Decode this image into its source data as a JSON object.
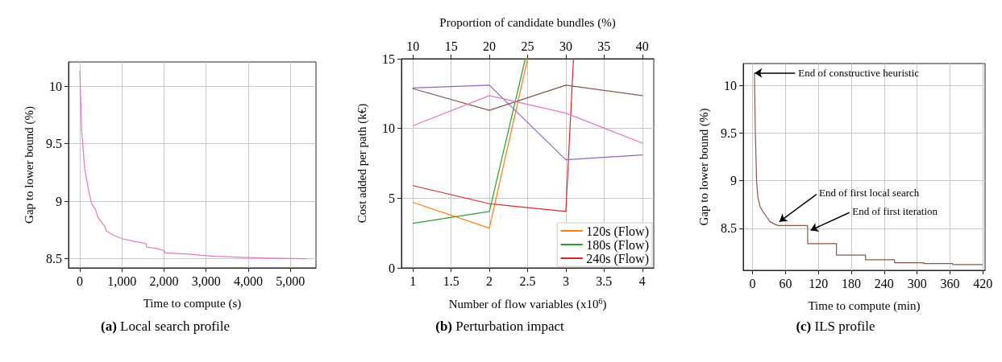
{
  "chart_data": [
    {
      "type": "line",
      "title": "(a) Local search profile",
      "xlabel": "Time to compute (s)",
      "ylabel": "Gap to lower bound (%)",
      "xlim": [
        -270,
        5610
      ],
      "xticks": [
        0,
        {
          "value": 1000,
          "label": "1,000"
        },
        {
          "value": 2000,
          "label": "2,000"
        },
        {
          "value": 3000,
          "label": "3,000"
        },
        {
          "value": 4000,
          "label": "4,000"
        },
        {
          "value": 5000,
          "label": "5,000"
        }
      ],
      "ylim": [
        8.42,
        10.21
      ],
      "yticks": [
        8.5,
        9,
        9.5,
        10
      ],
      "grid": true,
      "series": [
        {
          "color": "#e377c2",
          "x": [
            0,
            40,
            115,
            210,
            275,
            370,
            430,
            590,
            630,
            820,
            1040,
            1300,
            1580,
            1585,
            1810,
            2000,
            2030,
            2570,
            3210,
            3980,
            4490,
            5380
          ],
          "values": [
            10.13,
            9.63,
            9.28,
            9.09,
            8.98,
            8.93,
            8.86,
            8.78,
            8.74,
            8.7,
            8.67,
            8.65,
            8.63,
            8.6,
            8.59,
            8.57,
            8.55,
            8.54,
            8.52,
            8.51,
            8.505,
            8.5
          ]
        }
      ]
    },
    {
      "type": "line",
      "title": "(b) Perturbation impact",
      "xlabel": "Number of flow variables (x10$^{6}$)",
      "x2label": "Proportion of candidate bundles (%)",
      "ylabel": "Cost added per path (k€)",
      "xlim": [
        0.85,
        4.15
      ],
      "xticks": [
        1,
        1.5,
        2,
        2.5,
        3,
        3.5,
        4
      ],
      "x2lim": [
        8.5,
        41.5
      ],
      "x2ticks": [
        10,
        15,
        20,
        25,
        30,
        35,
        40
      ],
      "ylim": [
        0,
        15
      ],
      "yticks": [
        0,
        5,
        10,
        15
      ],
      "grid": true,
      "legend": "bottom right",
      "series": [
        {
          "name": "120s (Flow)",
          "color": "#ff7f0e",
          "x": [
            1,
            2,
            2.5
          ],
          "values": [
            4.7,
            2.85,
            15
          ]
        },
        {
          "name": "180s (Flow)",
          "color": "#2ca02c",
          "x": [
            1,
            2,
            2.47
          ],
          "values": [
            3.2,
            4.05,
            15
          ]
        },
        {
          "name": "240s (Flow)",
          "color": "#d62728",
          "x": [
            1,
            2,
            3,
            3.1
          ],
          "values": [
            5.9,
            4.6,
            4.05,
            15
          ]
        },
        {
          "color": "#9467bd",
          "axis": "x2",
          "x": [
            10,
            20,
            30,
            40
          ],
          "values": [
            12.9,
            13.1,
            7.75,
            8.1
          ]
        },
        {
          "color": "#8c564b",
          "axis": "x2",
          "x": [
            10,
            20,
            30,
            40
          ],
          "values": [
            12.85,
            11.3,
            13.1,
            12.35
          ]
        },
        {
          "color": "#e377c2",
          "axis": "x2",
          "x": [
            10,
            20,
            30,
            40
          ],
          "values": [
            10.2,
            12.35,
            11.1,
            8.95
          ]
        }
      ]
    },
    {
      "type": "line",
      "title": "(c) ILS profile",
      "xlabel": "Time to compute (min)",
      "ylabel": "Gap to lower bound (%)",
      "xlim": [
        -17,
        424
      ],
      "xticks": [
        0,
        60,
        120,
        180,
        240,
        300,
        360,
        420
      ],
      "ylim": [
        8.06,
        10.23
      ],
      "yticks": [
        8.5,
        9,
        9.5,
        10
      ],
      "grid": true,
      "series": [
        {
          "color": "#8c564b",
          "x": [
            3.4,
            4.9,
            7.4,
            9.8,
            13.7,
            17.2,
            24.5,
            31.9,
            41.7,
            46.6,
            100.5,
            100.5,
            153,
            153,
            206,
            206,
            259,
            259,
            312,
            312,
            365,
            365,
            419
          ],
          "values": [
            10.13,
            9.55,
            8.99,
            8.82,
            8.73,
            8.69,
            8.63,
            8.57,
            8.54,
            8.53,
            8.53,
            8.34,
            8.34,
            8.22,
            8.22,
            8.17,
            8.17,
            8.14,
            8.14,
            8.13,
            8.13,
            8.12,
            8.12
          ]
        }
      ],
      "annotations": [
        {
          "text": "End of constructive heuristic",
          "x": 4,
          "y": 10.13
        },
        {
          "text": "End of first local search",
          "x": 49,
          "y": 8.57
        },
        {
          "text": "End of first iteration",
          "x": 106,
          "y": 8.48
        }
      ]
    }
  ]
}
